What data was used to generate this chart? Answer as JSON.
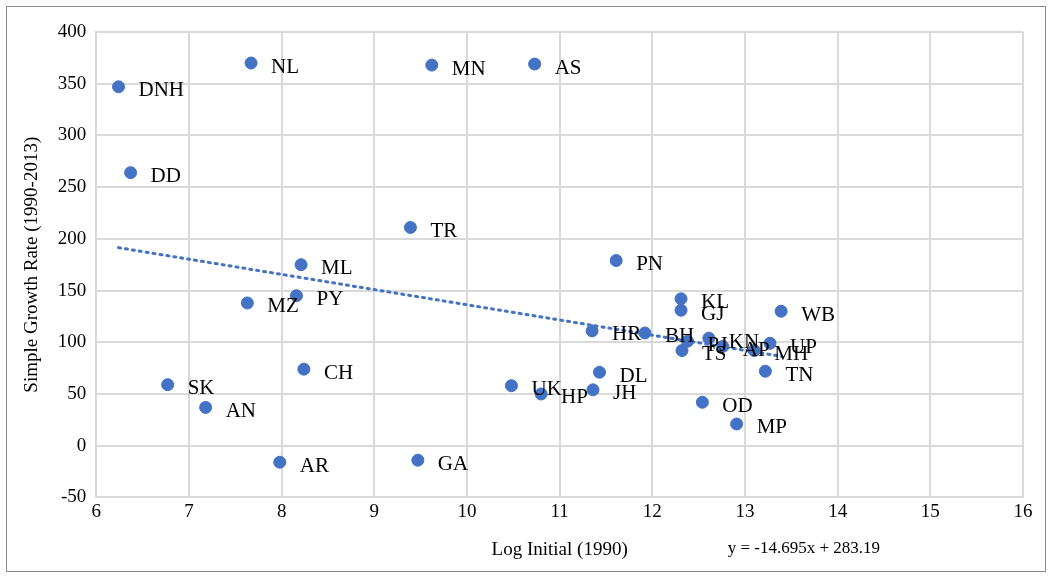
{
  "chart_data": {
    "type": "scatter",
    "xlabel": "Log Initial (1990)",
    "ylabel": "Simple Growth Rate (1990-2013)",
    "xlim": [
      6,
      16
    ],
    "xticks": [
      6,
      7,
      8,
      9,
      10,
      11,
      12,
      13,
      14,
      15,
      16
    ],
    "ylim": [
      -50,
      400
    ],
    "yticks": [
      -50,
      0,
      50,
      100,
      150,
      200,
      250,
      300,
      350,
      400
    ],
    "grid": true,
    "legend": false,
    "marker": "circle",
    "series": [
      {
        "color": "#4472c4",
        "x": [
          7.67,
          9.62,
          10.73,
          6.24,
          6.37,
          9.39,
          8.21,
          8.16,
          7.63,
          8.24,
          6.77,
          7.18,
          7.98,
          9.47,
          10.48,
          10.8,
          11.36,
          11.43,
          11.35,
          11.61,
          12.31,
          12.31,
          11.92,
          12.38,
          12.32,
          12.61,
          12.76,
          13.1,
          13.27,
          13.39,
          13.22,
          12.54,
          12.91
        ],
        "values": [
          370,
          368,
          369,
          347,
          264,
          211,
          175,
          145,
          138,
          74,
          59,
          37,
          -16,
          -14,
          58,
          50,
          54,
          71,
          111,
          179,
          142,
          131,
          109,
          101,
          92,
          104,
          96,
          92,
          99,
          130,
          72,
          42,
          21
        ]
      },
      {
        "type": "line",
        "color": "#4472c4",
        "line_style": "dotted",
        "marker": "none",
        "x": [
          6.24,
          13.4
        ],
        "values": [
          191.5,
          86.3
        ]
      }
    ],
    "annotations": [
      {
        "text": "NL",
        "x": 7.67,
        "y": 370
      },
      {
        "text": "MN",
        "x": 9.62,
        "y": 368
      },
      {
        "text": "AS",
        "x": 10.73,
        "y": 369
      },
      {
        "text": "DNH",
        "x": 6.24,
        "y": 347
      },
      {
        "text": "DD",
        "x": 6.37,
        "y": 264
      },
      {
        "text": "TR",
        "x": 9.39,
        "y": 211
      },
      {
        "text": "ML",
        "x": 8.21,
        "y": 175
      },
      {
        "text": "PY",
        "x": 8.16,
        "y": 145
      },
      {
        "text": "MZ",
        "x": 7.63,
        "y": 138
      },
      {
        "text": "CH",
        "x": 8.24,
        "y": 74
      },
      {
        "text": "SK",
        "x": 6.77,
        "y": 59
      },
      {
        "text": "AN",
        "x": 7.18,
        "y": 37
      },
      {
        "text": "AR",
        "x": 7.98,
        "y": -16
      },
      {
        "text": "GA",
        "x": 9.47,
        "y": -14
      },
      {
        "text": "UK",
        "x": 10.48,
        "y": 58
      },
      {
        "text": "HP",
        "x": 10.8,
        "y": 50
      },
      {
        "text": "JH",
        "x": 11.36,
        "y": 54
      },
      {
        "text": "DL",
        "x": 11.43,
        "y": 71
      },
      {
        "text": "HR",
        "x": 11.35,
        "y": 111
      },
      {
        "text": "PN",
        "x": 11.61,
        "y": 179
      },
      {
        "text": "KL",
        "x": 12.31,
        "y": 142
      },
      {
        "text": "GJ",
        "x": 12.31,
        "y": 131
      },
      {
        "text": "BH",
        "x": 11.92,
        "y": 109
      },
      {
        "text": "PJ",
        "x": 12.38,
        "y": 101
      },
      {
        "text": "TS",
        "x": 12.32,
        "y": 92
      },
      {
        "text": "KN",
        "x": 12.61,
        "y": 104
      },
      {
        "text": "AP",
        "x": 12.76,
        "y": 96
      },
      {
        "text": "MH",
        "x": 13.1,
        "y": 92
      },
      {
        "text": "UP",
        "x": 13.27,
        "y": 99
      },
      {
        "text": "WB",
        "x": 13.39,
        "y": 130
      },
      {
        "text": "TN",
        "x": 13.22,
        "y": 72
      },
      {
        "text": "OD",
        "x": 12.54,
        "y": 42
      },
      {
        "text": "MP",
        "x": 12.91,
        "y": 21
      },
      "y = -14.695x + 283.19"
    ]
  }
}
